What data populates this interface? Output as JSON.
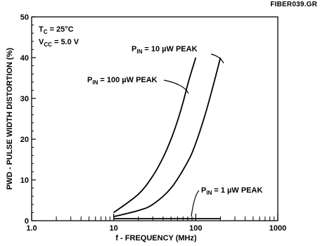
{
  "figure_id": "FIBER039.GR",
  "chart_data": {
    "type": "line",
    "title": "",
    "xlabel": "f - FREQUENCY (MHz)",
    "ylabel": "PWD - PULSE WIDTH DISTORTION (%)",
    "xscale": "log",
    "xlim": [
      1.0,
      1000
    ],
    "ylim": [
      0,
      50
    ],
    "x_ticks": [
      1.0,
      10,
      100,
      1000
    ],
    "x_tick_labels": [
      "1.0",
      "10",
      "100",
      "1000"
    ],
    "y_ticks": [
      0,
      10,
      20,
      30,
      40,
      50
    ],
    "y_tick_labels": [
      "0",
      "10",
      "20",
      "30",
      "40",
      "50"
    ],
    "grid": false,
    "conditions": {
      "tc": {
        "main": "T",
        "sub": "C",
        "rest": " = 25°C"
      },
      "vcc": {
        "main": "V",
        "sub": "CC",
        "rest": " = 5.0 V"
      }
    },
    "series": [
      {
        "name": "P_IN = 100 µW PEAK",
        "label": {
          "main": "P",
          "sub": "IN",
          "rest": " = 100 µW PEAK"
        },
        "x": [
          10,
          20,
          30,
          40,
          50,
          60,
          70,
          80,
          90,
          100
        ],
        "y": [
          2,
          6.5,
          11,
          15.5,
          20,
          24.5,
          29,
          33.5,
          37,
          40
        ]
      },
      {
        "name": "P_IN = 10 µW PEAK",
        "label": {
          "main": "P",
          "sub": "IN",
          "rest": " = 10 µW PEAK"
        },
        "x": [
          10,
          20,
          30,
          50,
          80,
          100,
          130,
          160,
          200
        ],
        "y": [
          1,
          2.5,
          4,
          8,
          14.5,
          19,
          26,
          32.5,
          40
        ]
      },
      {
        "name": "P_IN = 1 µW PEAK",
        "label": {
          "main": "P",
          "sub": "IN",
          "rest": " = 1 µW PEAK"
        },
        "x": [
          10,
          200
        ],
        "y": [
          0.5,
          0.5
        ]
      }
    ]
  }
}
